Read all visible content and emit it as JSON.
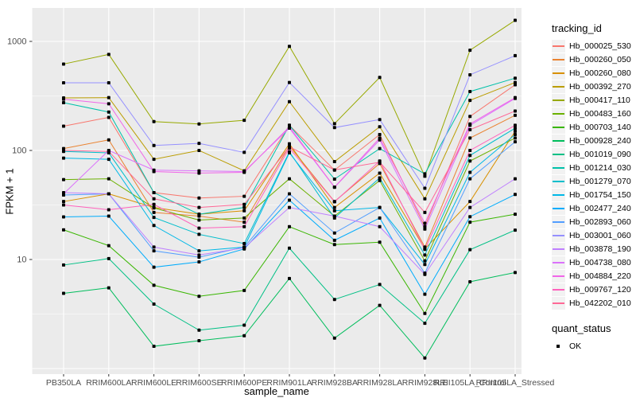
{
  "axes": {
    "x": {
      "title": "sample_name"
    },
    "y": {
      "title": "FPKM + 1",
      "tick_labels": [
        "10",
        "100",
        "1000"
      ],
      "tick_values": [
        10,
        100,
        1000
      ]
    }
  },
  "legend": {
    "tracking_title": "tracking_id",
    "quant_title": "quant_status",
    "quant_items": [
      {
        "label": "OK"
      }
    ]
  },
  "style": {
    "panel_background": "#EBEBEB",
    "gridline_color": "#FFFFFF",
    "tick_label_color": "#4D4D4D",
    "point_color": "#000000",
    "legend_key_background": "#F2F2F2"
  },
  "chart_data": {
    "type": "line",
    "title": "",
    "xlabel": "sample_name",
    "ylabel": "FPKM + 1",
    "y_scale": "log10",
    "ylim": [
      0.88,
      1800
    ],
    "grid": true,
    "legend_position": "right",
    "categories": [
      "PB350LA",
      "RRIM600LA",
      "RRIM600LE",
      "RRIM600SE",
      "RRIM600PE",
      "RRIM901LA",
      "RRIM928BA",
      "RRIM928LA",
      "RRIM928LE",
      "RRII105LA_Control",
      "RRII105LA_Stressed"
    ],
    "series": [
      {
        "name": "Hb_000025_530",
        "color": "#F8766D",
        "values": [
          167,
          201,
          41,
          36.6,
          38,
          170,
          66,
          140,
          20,
          205,
          400
        ]
      },
      {
        "name": "Hb_000260_050",
        "color": "#EA8331",
        "values": [
          104,
          125,
          27,
          25,
          22,
          110,
          34,
          76,
          13,
          130,
          210
        ]
      },
      {
        "name": "Hb_000260_080",
        "color": "#D89000",
        "values": [
          34,
          40,
          30,
          26,
          28,
          115,
          30,
          62,
          12.5,
          34,
          150
        ]
      },
      {
        "name": "Hb_000392_270",
        "color": "#BB9D00",
        "values": [
          303,
          305,
          83,
          100,
          65,
          280,
          79,
          165,
          36,
          288,
          420
        ]
      },
      {
        "name": "Hb_000417_110",
        "color": "#97A900",
        "values": [
          620,
          760,
          184,
          175,
          189,
          900,
          176,
          467,
          58,
          830,
          1560
        ]
      },
      {
        "name": "Hb_000483_160",
        "color": "#6BB100",
        "values": [
          54,
          55,
          29.7,
          23,
          24,
          55,
          25,
          53,
          9.7,
          80,
          130
        ]
      },
      {
        "name": "Hb_000703_140",
        "color": "#39B600",
        "values": [
          18.7,
          13.4,
          5.8,
          4.6,
          5.2,
          20,
          13.7,
          14.4,
          3.2,
          22,
          26
        ]
      },
      {
        "name": "Hb_000928_240",
        "color": "#00BD5C",
        "values": [
          4.9,
          5.5,
          1.6,
          1.8,
          2.0,
          6.7,
          1.9,
          3.8,
          1.25,
          6.25,
          7.6
        ]
      },
      {
        "name": "Hb_001019_090",
        "color": "#00C085",
        "values": [
          8.9,
          10.2,
          3.9,
          2.25,
          2.5,
          12.7,
          4.3,
          5.9,
          2.6,
          12.3,
          18.6
        ]
      },
      {
        "name": "Hb_001214_030",
        "color": "#00C1AA",
        "values": [
          274,
          225,
          41,
          26,
          30,
          170,
          54.6,
          104,
          61,
          347,
          460
        ]
      },
      {
        "name": "Hb_001279_070",
        "color": "#00BECC",
        "values": [
          98,
          95,
          24.3,
          17,
          14,
          97,
          24,
          56,
          11,
          90,
          160
        ]
      },
      {
        "name": "Hb_001754_150",
        "color": "#00B8E7",
        "values": [
          85,
          83,
          20.5,
          12,
          13,
          95,
          28,
          30,
          9,
          63,
          140
        ]
      },
      {
        "name": "Hb_002477_240",
        "color": "#00ACFC",
        "values": [
          24.6,
          25,
          8.5,
          9.5,
          12.5,
          35,
          15,
          24,
          4.8,
          24.7,
          39.5
        ]
      },
      {
        "name": "Hb_002893_060",
        "color": "#529EFF",
        "values": [
          39,
          40,
          12,
          10.5,
          13,
          40,
          17.5,
          30,
          7.5,
          55,
          120
        ]
      },
      {
        "name": "Hb_003001_060",
        "color": "#9590FF",
        "values": [
          417,
          417,
          111,
          116,
          96,
          420,
          162,
          192,
          45,
          494,
          740
        ]
      },
      {
        "name": "Hb_003878_190",
        "color": "#BF80FF",
        "values": [
          41,
          40,
          13,
          11,
          12.8,
          30,
          25,
          20,
          7.3,
          30,
          55
        ]
      },
      {
        "name": "Hb_004738_080",
        "color": "#DB72FB",
        "values": [
          40,
          100,
          66,
          65,
          64,
          160,
          46,
          125,
          19,
          170,
          300
        ]
      },
      {
        "name": "Hb_004884_220",
        "color": "#F166E8",
        "values": [
          295,
          268,
          64,
          62,
          63,
          165,
          46.1,
          130,
          21.5,
          175,
          305
        ]
      },
      {
        "name": "Hb_009767_120",
        "color": "#FF62BC",
        "values": [
          31.6,
          28.6,
          32,
          19.4,
          20,
          105,
          33.8,
          80,
          12.4,
          100,
          170
        ]
      },
      {
        "name": "Hb_042202_010",
        "color": "#FF6896",
        "values": [
          100,
          98,
          36,
          30,
          32,
          108,
          66.3,
          78,
          27,
          155,
          230
        ]
      }
    ]
  }
}
